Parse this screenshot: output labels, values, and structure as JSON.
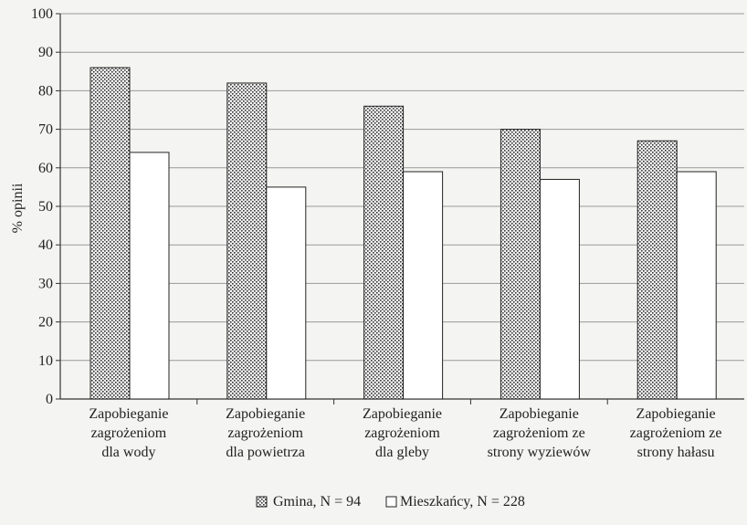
{
  "chart_data": {
    "type": "bar",
    "categories": [
      [
        "Zapobieganie",
        "zagrożeniom",
        "dla wody"
      ],
      [
        "Zapobieganie",
        "zagrożeniom",
        "dla powietrza"
      ],
      [
        "Zapobieganie",
        "zagrożeniom",
        "dla gleby"
      ],
      [
        "Zapobieganie",
        "zagrożeniom ze",
        "strony wyziewów"
      ],
      [
        "Zapobieganie",
        "zagrożeniom ze",
        "strony hałasu"
      ]
    ],
    "series": [
      {
        "name": "Gmina, N = 94",
        "values": [
          86,
          82,
          76,
          70,
          67
        ],
        "pattern": "dotted"
      },
      {
        "name": "Mieszkańcy, N = 228",
        "values": [
          64,
          55,
          59,
          57,
          59
        ],
        "pattern": "plain"
      }
    ],
    "title": "",
    "xlabel": "",
    "ylabel": "% opinii",
    "ylim": [
      0,
      100
    ],
    "yticks": [
      0,
      10,
      20,
      30,
      40,
      50,
      60,
      70,
      80,
      90,
      100
    ],
    "grid": true,
    "legend_position": "bottom"
  }
}
